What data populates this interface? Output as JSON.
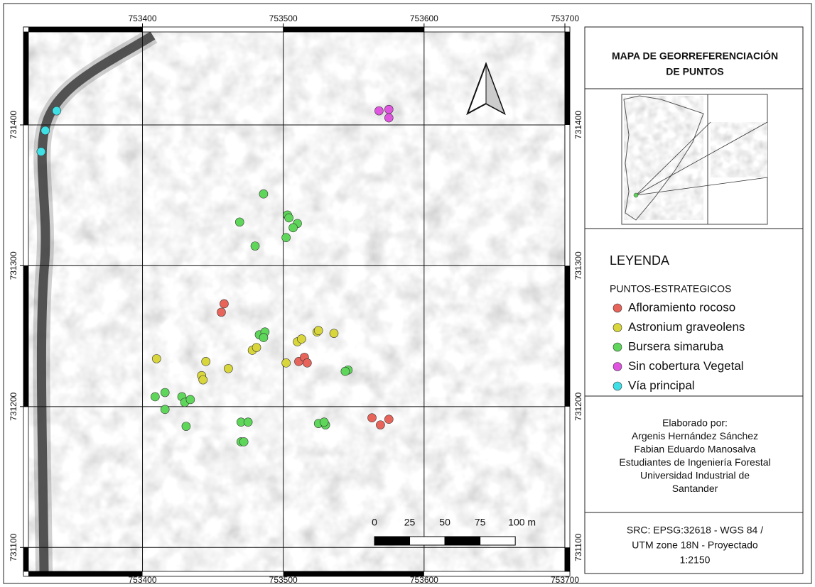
{
  "map": {
    "xlim": [
      753319,
      753700
    ],
    "ylim": [
      731083,
      731466
    ],
    "xticks": [
      753400,
      753500,
      753600,
      753700
    ],
    "yticks": [
      731100,
      731200,
      731300,
      731400
    ],
    "layers": [
      {
        "name": "Afloramiento rocoso",
        "color": "#e8645a",
        "x": [
          753458,
          753456,
          753511,
          753515,
          753517,
          753563,
          753569,
          753575
        ],
        "y": [
          731273,
          731267,
          731232,
          731235,
          731231,
          731192,
          731187,
          731191
        ]
      },
      {
        "name": "Astronium graveolens",
        "color": "#d8d63a",
        "x": [
          753410,
          753445,
          753442,
          753443,
          753461,
          753478,
          753481,
          753502,
          753510,
          753513,
          753524,
          753525,
          753536
        ],
        "y": [
          731234,
          731232,
          731222,
          731219,
          731227,
          731240,
          731242,
          731231,
          731246,
          731248,
          731253,
          731254,
          731252
        ]
      },
      {
        "name": "Bursera simaruba",
        "color": "#5ed65a",
        "x": [
          753486,
          753469,
          753480,
          753503,
          753504,
          753510,
          753507,
          753502,
          753483,
          753487,
          753486,
          753409,
          753416,
          753416,
          753428,
          753430,
          753434,
          753431,
          753470,
          753475,
          753470,
          753472,
          753525,
          753530,
          753529,
          753546,
          753544
        ],
        "y": [
          731351,
          731331,
          731314,
          731336,
          731334,
          731330,
          731327,
          731320,
          731251,
          731253,
          731249,
          731207,
          731210,
          731198,
          731207,
          731203,
          731205,
          731186,
          731189,
          731189,
          731175,
          731175,
          731188,
          731187,
          731189,
          731226,
          731225
        ]
      },
      {
        "name": "Sin cobertura Vegetal",
        "color": "#e055e0",
        "x": [
          753568,
          753575,
          753575
        ],
        "y": [
          731410,
          731411,
          731405
        ]
      },
      {
        "name": "Vía principal",
        "color": "#3ee0e6",
        "x": [
          753339,
          753331,
          753328
        ],
        "y": [
          731410,
          731396,
          731381
        ]
      }
    ],
    "scale_bar": {
      "ticks": [
        0,
        25,
        50,
        75,
        {
          "value": 100,
          "label": "100 m"
        }
      ]
    }
  },
  "panel": {
    "title": [
      "MAPA DE GEORREFERENCIACIÓN",
      "DE PUNTOS"
    ],
    "legend_title": "LEYENDA",
    "legend_group": "PUNTOS-ESTRATEGICOS",
    "credits": [
      "Elaborado por:",
      "Argenis Hernández Sánchez",
      "Fabian Eduardo Manosalva",
      "Estudiantes de Ingeniería Forestal",
      "Universidad Industrial de",
      "Santander"
    ],
    "crs": [
      "SRC: EPSG:32618 - WGS 84 /",
      "UTM zone 18N - Proyectado",
      "1:2150"
    ]
  }
}
